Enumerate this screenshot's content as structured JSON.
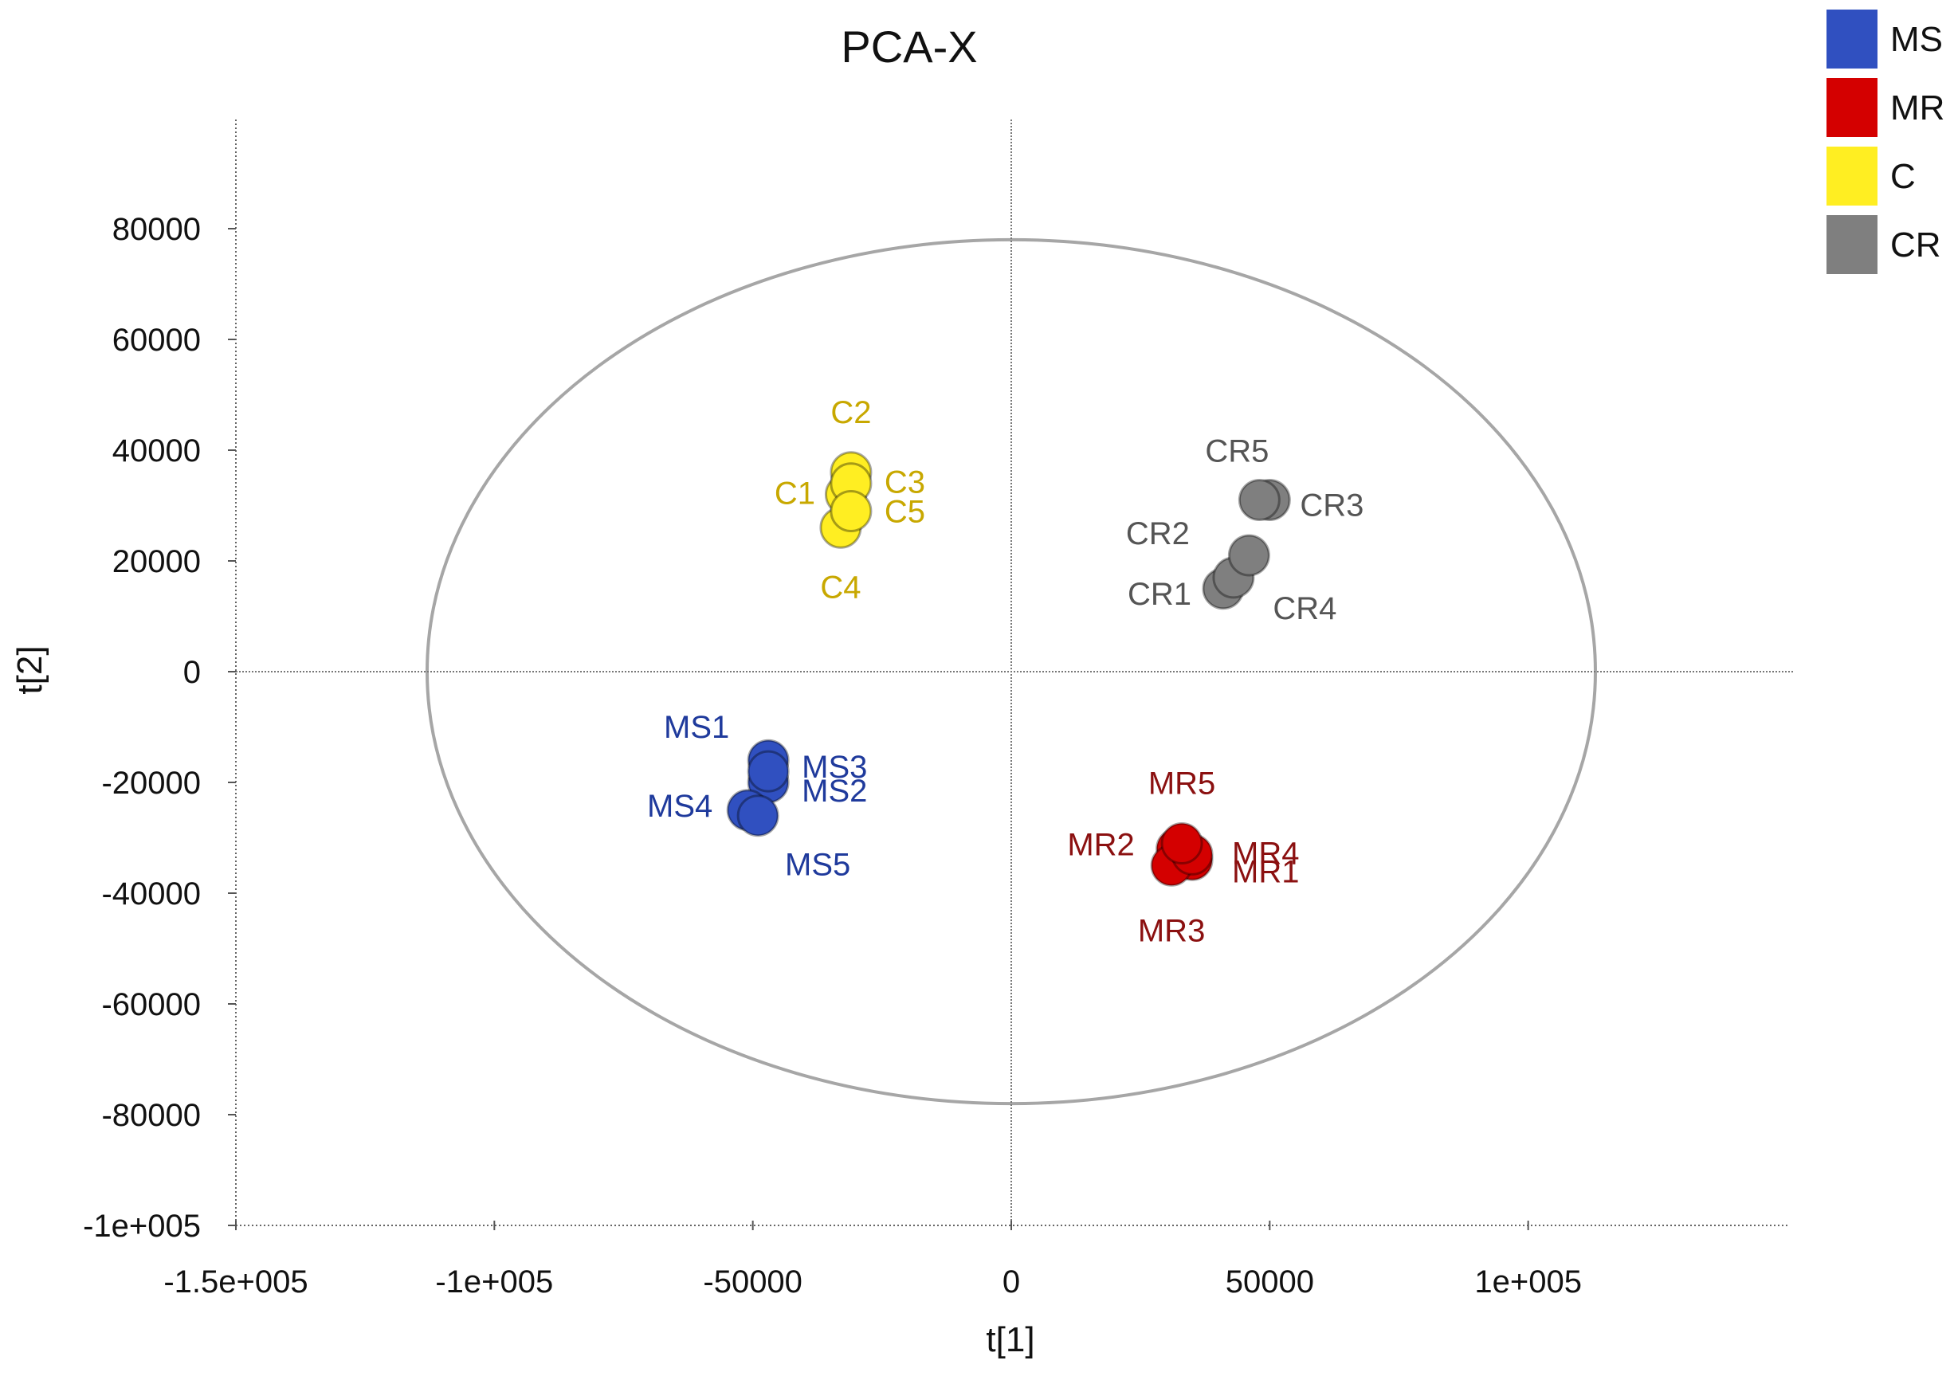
{
  "chart_data": {
    "type": "scatter",
    "title": "PCA-X",
    "xlabel": "t[1]",
    "ylabel": "t[2]",
    "xlim": [
      -150000,
      150000
    ],
    "ylim": [
      -100000,
      100000
    ],
    "x_ticks": [
      {
        "value": -150000,
        "label": "-1.5e+005"
      },
      {
        "value": -100000,
        "label": "-1e+005"
      },
      {
        "value": -50000,
        "label": "-50000"
      },
      {
        "value": 0,
        "label": "0"
      },
      {
        "value": 50000,
        "label": "50000"
      },
      {
        "value": 100000,
        "label": "1e+005"
      }
    ],
    "y_ticks": [
      {
        "value": 80000,
        "label": "80000"
      },
      {
        "value": 60000,
        "label": "60000"
      },
      {
        "value": 40000,
        "label": "40000"
      },
      {
        "value": 20000,
        "label": "20000"
      },
      {
        "value": 0,
        "label": "0"
      },
      {
        "value": -20000,
        "label": "-20000"
      },
      {
        "value": -40000,
        "label": "-40000"
      },
      {
        "value": -60000,
        "label": "-60000"
      },
      {
        "value": -80000,
        "label": "-80000"
      },
      {
        "value": -100000,
        "label": "-1e+005"
      }
    ],
    "ellipse": {
      "center": [
        0,
        0
      ],
      "rx": 113000,
      "ry": 78000,
      "color": "#a6a6a6"
    },
    "zero_lines": true,
    "legend_position": "top-right",
    "series": [
      {
        "name": "MS",
        "color": "#3050c0",
        "label_color": "#1f3a9c",
        "points": [
          {
            "label": "MS1",
            "x": -47000,
            "y": -16000
          },
          {
            "label": "MS2",
            "x": -47000,
            "y": -20000
          },
          {
            "label": "MS3",
            "x": -47000,
            "y": -18000
          },
          {
            "label": "MS4",
            "x": -51000,
            "y": -25000
          },
          {
            "label": "MS5",
            "x": -49000,
            "y": -26000
          }
        ]
      },
      {
        "name": "MR",
        "color": "#d40000",
        "label_color": "#8b1010",
        "points": [
          {
            "label": "MR1",
            "x": 35000,
            "y": -34000
          },
          {
            "label": "MR2",
            "x": 32000,
            "y": -32000
          },
          {
            "label": "MR3",
            "x": 31000,
            "y": -35000
          },
          {
            "label": "MR4",
            "x": 35000,
            "y": -33000
          },
          {
            "label": "MR5",
            "x": 33000,
            "y": -31000
          }
        ]
      },
      {
        "name": "C",
        "color": "#ffee22",
        "label_color": "#c8a800",
        "points": [
          {
            "label": "C1",
            "x": -32000,
            "y": 32000
          },
          {
            "label": "C2",
            "x": -31000,
            "y": 36000
          },
          {
            "label": "C3",
            "x": -31000,
            "y": 34000
          },
          {
            "label": "C4",
            "x": -33000,
            "y": 26000
          },
          {
            "label": "C5",
            "x": -31000,
            "y": 29000
          }
        ]
      },
      {
        "name": "CR",
        "color": "#7f7f7f",
        "label_color": "#555555",
        "points": [
          {
            "label": "CR1",
            "x": 41000,
            "y": 15000
          },
          {
            "label": "CR2",
            "x": 43000,
            "y": 17000
          },
          {
            "label": "CR3",
            "x": 50000,
            "y": 31000
          },
          {
            "label": "CR4",
            "x": 46000,
            "y": 21000
          },
          {
            "label": "CR5",
            "x": 48000,
            "y": 31000
          }
        ]
      }
    ]
  }
}
